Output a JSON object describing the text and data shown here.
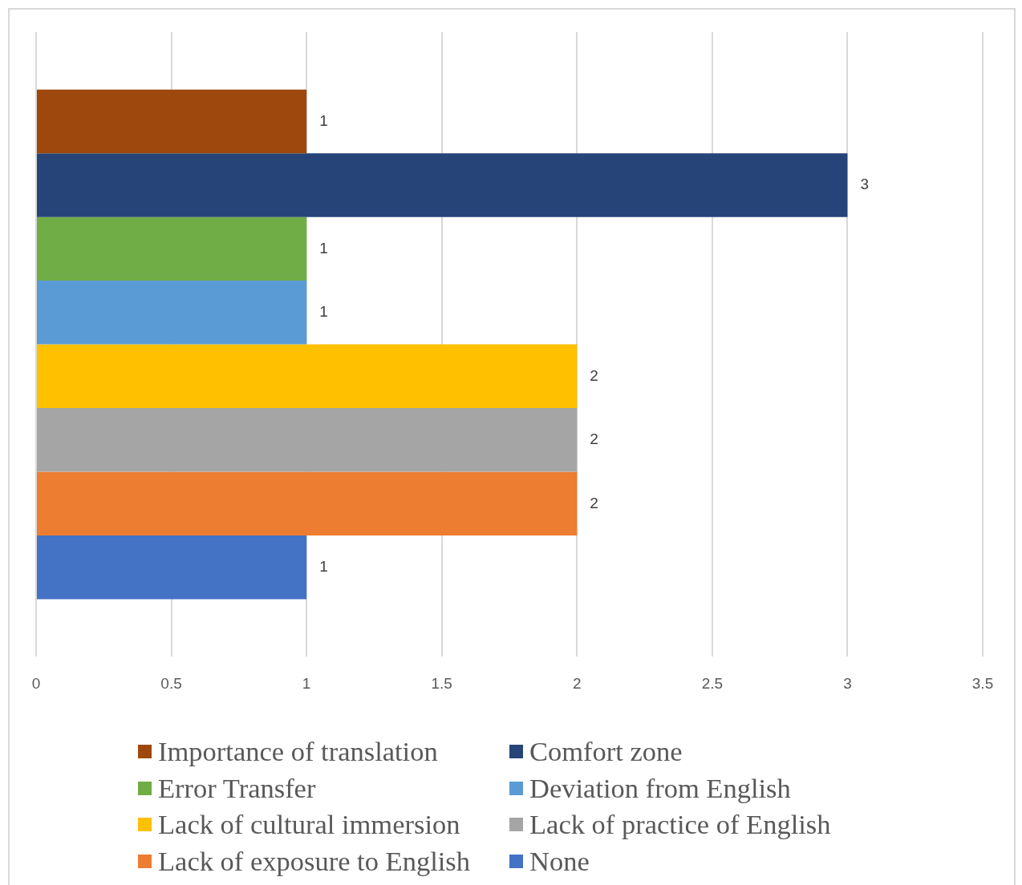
{
  "chart_data": {
    "type": "bar",
    "orientation": "horizontal",
    "categories": [
      null
    ],
    "series": [
      {
        "name": "Importance of translation",
        "color": "#9e480e",
        "values": [
          1
        ]
      },
      {
        "name": "Comfort zone",
        "color": "#264478",
        "values": [
          3
        ]
      },
      {
        "name": "Error Transfer",
        "color": "#70ad47",
        "values": [
          1
        ]
      },
      {
        "name": "Deviation from English",
        "color": "#5b9bd5",
        "values": [
          1
        ]
      },
      {
        "name": "Lack of cultural immersion",
        "color": "#ffc000",
        "values": [
          2
        ]
      },
      {
        "name": "Lack of practice of English",
        "color": "#a5a5a5",
        "values": [
          2
        ]
      },
      {
        "name": "Lack of exposure to English",
        "color": "#ed7d31",
        "values": [
          2
        ]
      },
      {
        "name": "None",
        "color": "#4472c4",
        "values": [
          1
        ]
      }
    ],
    "xlim": [
      0,
      3.5
    ],
    "xticks": [
      0,
      0.5,
      1,
      1.5,
      2,
      2.5,
      3,
      3.5
    ],
    "tick_labels": "x",
    "grid": "x",
    "legend": "bottom",
    "data_labels": true
  }
}
